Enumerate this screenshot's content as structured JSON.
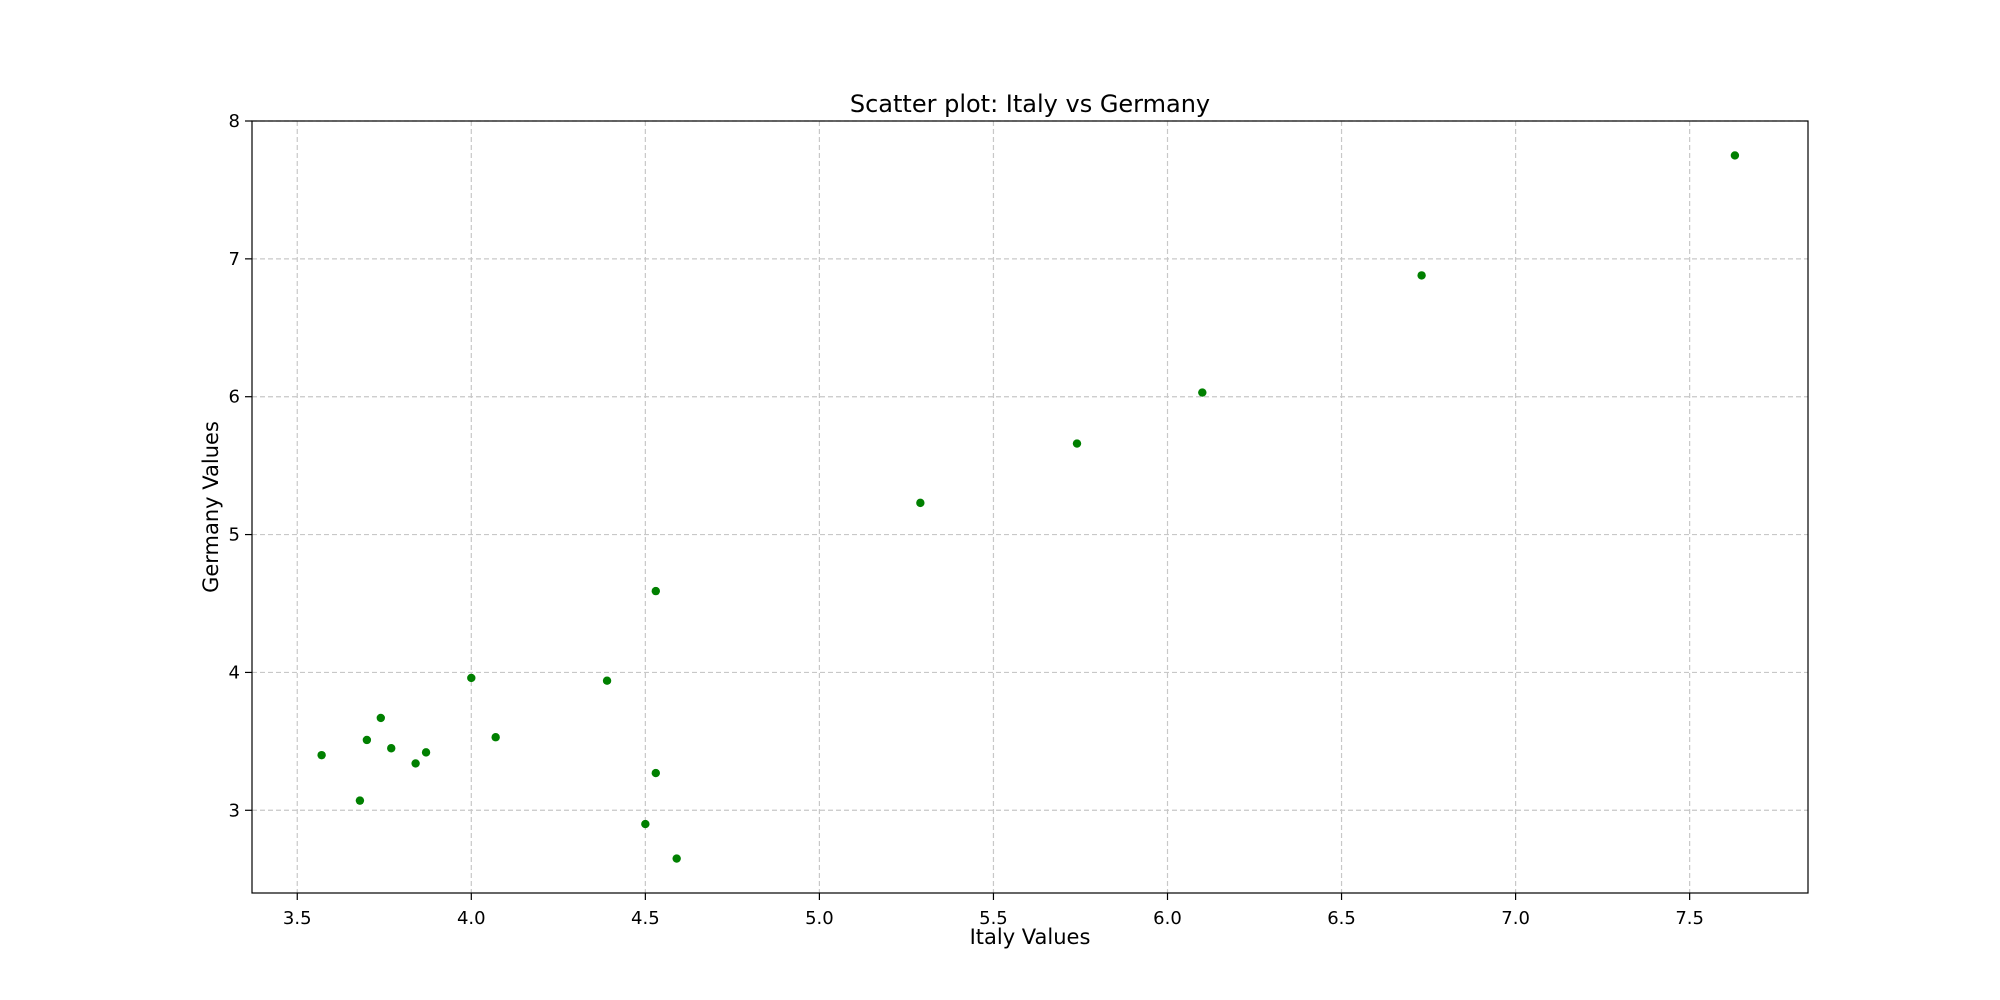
{
  "colors": {
    "background": "#ffffff",
    "marker": "#008000",
    "grid": "#c8c8c8",
    "axis": "#000000"
  },
  "chart_data": {
    "type": "scatter",
    "title": "Scatter plot: Italy vs Germany",
    "xlabel": "Italy Values",
    "ylabel": "Germany Values",
    "xlim": [
      3.37,
      7.84
    ],
    "ylim": [
      2.4,
      8.0
    ],
    "xticks": [
      3.5,
      4.0,
      4.5,
      5.0,
      5.5,
      6.0,
      6.5,
      7.0,
      7.5
    ],
    "xtick_labels": [
      "3.5",
      "4.0",
      "4.5",
      "5.0",
      "5.5",
      "6.0",
      "6.5",
      "7.0",
      "7.5"
    ],
    "yticks": [
      3,
      4,
      5,
      6,
      7,
      8
    ],
    "ytick_labels": [
      "3",
      "4",
      "5",
      "6",
      "7",
      "8"
    ],
    "grid": true,
    "series": [
      {
        "name": "Italy vs Germany",
        "color": "#008000",
        "points": [
          {
            "x": 3.57,
            "y": 3.4
          },
          {
            "x": 3.68,
            "y": 3.07
          },
          {
            "x": 3.7,
            "y": 3.51
          },
          {
            "x": 3.74,
            "y": 3.67
          },
          {
            "x": 3.77,
            "y": 3.45
          },
          {
            "x": 3.84,
            "y": 3.34
          },
          {
            "x": 3.87,
            "y": 3.42
          },
          {
            "x": 4.0,
            "y": 3.96
          },
          {
            "x": 4.07,
            "y": 3.53
          },
          {
            "x": 4.39,
            "y": 3.94
          },
          {
            "x": 4.5,
            "y": 2.9
          },
          {
            "x": 4.53,
            "y": 4.59
          },
          {
            "x": 4.53,
            "y": 3.27
          },
          {
            "x": 4.59,
            "y": 2.65
          },
          {
            "x": 5.29,
            "y": 5.23
          },
          {
            "x": 5.74,
            "y": 5.66
          },
          {
            "x": 6.1,
            "y": 6.03
          },
          {
            "x": 6.73,
            "y": 6.88
          },
          {
            "x": 7.63,
            "y": 7.75
          }
        ]
      }
    ]
  }
}
